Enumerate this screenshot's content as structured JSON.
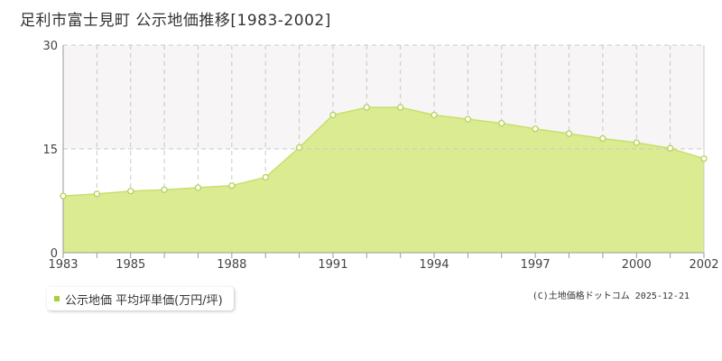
{
  "title": "足利市富士見町 公示地価推移[1983-2002]",
  "legend": {
    "label": "公示地価 平均坪単価(万円/坪)"
  },
  "copyright": "(C)土地価格ドットコム 2025-12-21",
  "colors": {
    "fill": "#dbeb91",
    "line": "#c8df6c",
    "point_fill": "#ffffff",
    "point_stroke": "#b4d25a",
    "band": "#f7f5f5",
    "grid": "#c8c8c8",
    "legend_swatch": "#a8cf3c"
  },
  "chart_data": {
    "type": "area",
    "title": "足利市富士見町 公示地価推移[1983-2002]",
    "xlabel": "",
    "ylabel": "",
    "x": [
      1983,
      1984,
      1985,
      1986,
      1987,
      1988,
      1989,
      1990,
      1991,
      1992,
      1993,
      1994,
      1995,
      1996,
      1997,
      1998,
      1999,
      2000,
      2001,
      2002
    ],
    "series": [
      {
        "name": "公示地価 平均坪単価(万円/坪)",
        "values": [
          8.2,
          8.5,
          8.9,
          9.1,
          9.4,
          9.7,
          10.9,
          15.2,
          19.9,
          21.0,
          21.0,
          19.9,
          19.3,
          18.7,
          17.9,
          17.2,
          16.5,
          15.9,
          15.1,
          13.6
        ]
      }
    ],
    "xticks": [
      "1983",
      "1985",
      "1988",
      "1991",
      "1994",
      "1997",
      "2000",
      "2002"
    ],
    "yticks": [
      "0",
      "15",
      "30"
    ],
    "ylim": [
      0,
      30
    ],
    "grid": true,
    "legend_position": "bottom-left"
  }
}
